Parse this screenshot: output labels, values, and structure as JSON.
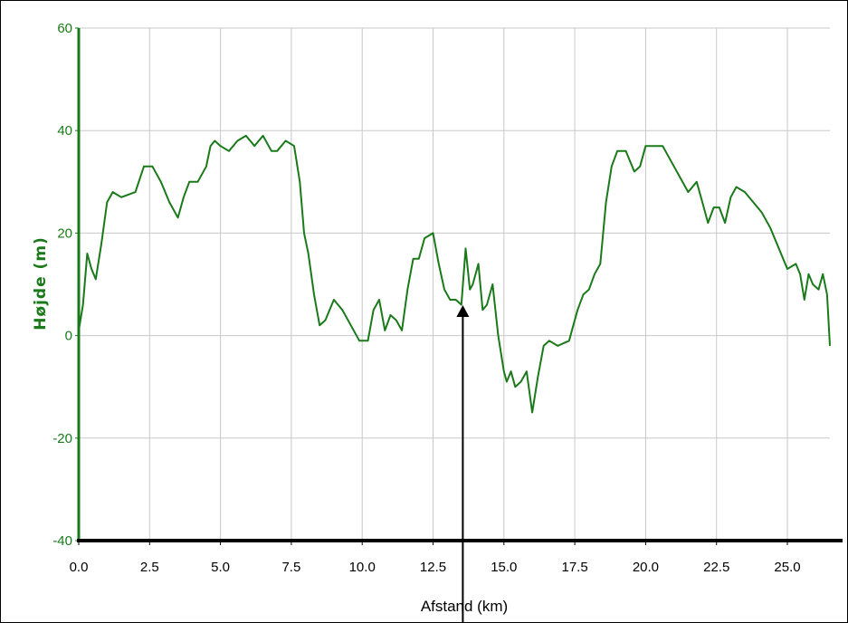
{
  "chart_data": {
    "type": "line",
    "xlabel": "Afstand (km)",
    "ylabel": "Højde (m)",
    "xlim": [
      0,
      26.5
    ],
    "ylim": [
      -40,
      60
    ],
    "x_ticks": [
      "0.0",
      "2.5",
      "5.0",
      "7.5",
      "10.0",
      "12.5",
      "15.0",
      "17.5",
      "20.0",
      "22.5",
      "25.0"
    ],
    "y_ticks": [
      "60",
      "40",
      "20",
      "0",
      "-20",
      "-40"
    ],
    "grid": true,
    "series": [
      {
        "color": "#1a7a1a",
        "x": [
          0.0,
          0.15,
          0.3,
          0.45,
          0.6,
          0.8,
          1.0,
          1.2,
          1.5,
          2.0,
          2.3,
          2.6,
          2.9,
          3.2,
          3.5,
          3.7,
          3.9,
          4.2,
          4.5,
          4.65,
          4.8,
          5.0,
          5.3,
          5.6,
          5.9,
          6.2,
          6.5,
          6.8,
          7.0,
          7.3,
          7.6,
          7.8,
          7.95,
          8.1,
          8.3,
          8.5,
          8.7,
          9.0,
          9.3,
          9.6,
          9.9,
          10.2,
          10.4,
          10.6,
          10.8,
          11.0,
          11.2,
          11.4,
          11.6,
          11.8,
          12.0,
          12.2,
          12.5,
          12.7,
          12.9,
          13.1,
          13.3,
          13.5,
          13.65,
          13.8,
          13.9,
          14.1,
          14.25,
          14.4,
          14.6,
          14.8,
          15.0,
          15.1,
          15.25,
          15.4,
          15.6,
          15.8,
          16.0,
          16.2,
          16.4,
          16.6,
          16.9,
          17.3,
          17.6,
          17.8,
          18.0,
          18.2,
          18.4,
          18.6,
          18.8,
          19.0,
          19.3,
          19.6,
          19.8,
          20.0,
          20.3,
          20.6,
          20.9,
          21.2,
          21.5,
          21.8,
          22.0,
          22.2,
          22.4,
          22.6,
          22.8,
          23.0,
          23.2,
          23.5,
          23.8,
          24.1,
          24.4,
          24.7,
          25.0,
          25.3,
          25.45,
          25.6,
          25.75,
          25.9,
          26.1,
          26.25,
          26.4,
          26.5
        ],
        "y": [
          1,
          6,
          16,
          13,
          11,
          18,
          26,
          28,
          27,
          28,
          33,
          33,
          30,
          26,
          23,
          27,
          30,
          30,
          33,
          37,
          38,
          37,
          36,
          38,
          39,
          37,
          39,
          36,
          36,
          38,
          37,
          30,
          20,
          16,
          8,
          2,
          3,
          7,
          5,
          2,
          -1,
          -1,
          5,
          7,
          1,
          4,
          3,
          1,
          9,
          15,
          15,
          19,
          20,
          14,
          9,
          7,
          7,
          6,
          17,
          9,
          10,
          14,
          5,
          6,
          10,
          0,
          -7,
          -9,
          -7,
          -10,
          -9,
          -7,
          -15,
          -8,
          -2,
          -1,
          -2,
          -1,
          5,
          8,
          9,
          12,
          14,
          26,
          33,
          36,
          36,
          32,
          33,
          37,
          37,
          37,
          34,
          31,
          28,
          30,
          26,
          22,
          25,
          25,
          22,
          27,
          29,
          28,
          26,
          24,
          21,
          17,
          13,
          14,
          12,
          7,
          12,
          10,
          9,
          12,
          8,
          -2
        ]
      }
    ],
    "marker_x": 13.55
  }
}
